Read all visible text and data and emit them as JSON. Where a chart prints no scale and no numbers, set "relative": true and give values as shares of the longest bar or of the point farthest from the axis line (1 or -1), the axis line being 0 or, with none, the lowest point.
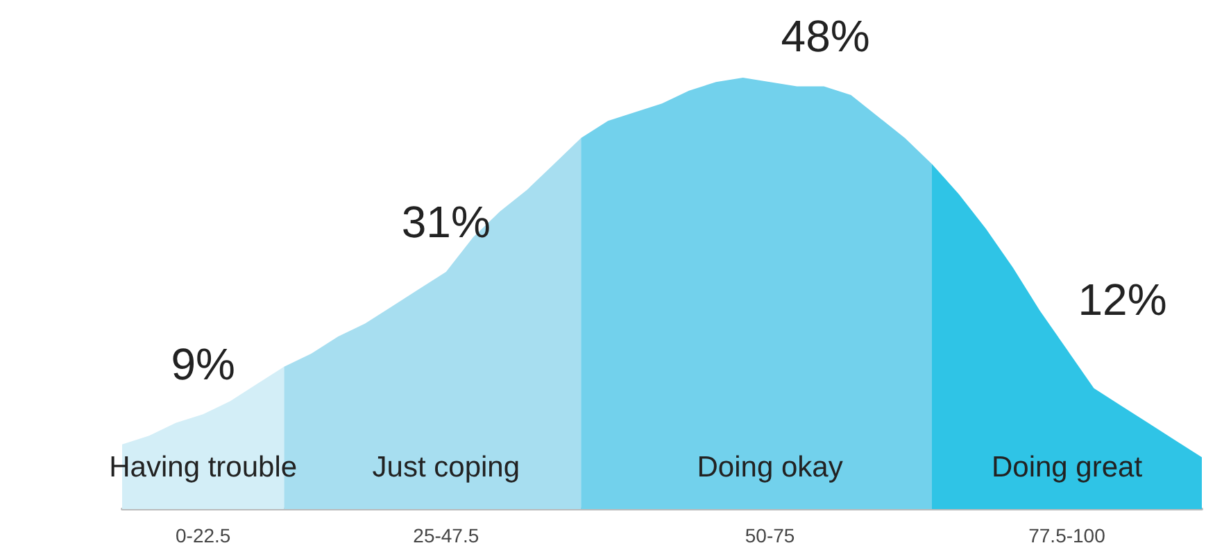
{
  "chart_data": {
    "type": "area",
    "relative": true,
    "legend": false,
    "grid": false,
    "categories": [
      null,
      null,
      null,
      "0-22.5",
      null,
      null,
      null,
      null,
      null,
      null,
      null,
      null,
      "25-47.5",
      null,
      null,
      null,
      null,
      null,
      null,
      null,
      null,
      null,
      null,
      null,
      "50-75",
      null,
      null,
      null,
      null,
      null,
      null,
      null,
      null,
      null,
      null,
      "77.5-100",
      null,
      null,
      null,
      null,
      null
    ],
    "annotations": [
      "9%",
      "31%",
      "48%",
      "12%"
    ],
    "series": [
      {
        "name": "Having trouble",
        "color": "#d3eef7",
        "values": [
          0.15,
          0.17,
          0.2,
          0.22,
          0.25,
          0.29,
          0.33,
          null,
          null,
          null,
          null,
          null,
          null,
          null,
          null,
          null,
          null,
          null,
          null,
          null,
          null,
          null,
          null,
          null,
          null,
          null,
          null,
          null,
          null,
          null,
          null,
          null,
          null,
          null,
          null,
          null,
          null,
          null,
          null,
          null,
          null
        ]
      },
      {
        "name": "Just coping",
        "color": "#a7def0",
        "values": [
          null,
          null,
          null,
          null,
          null,
          null,
          0.33,
          0.36,
          0.4,
          0.43,
          0.47,
          0.51,
          0.55,
          0.63,
          0.69,
          0.74,
          0.8,
          0.86,
          null,
          null,
          null,
          null,
          null,
          null,
          null,
          null,
          null,
          null,
          null,
          null,
          null,
          null,
          null,
          null,
          null,
          null,
          null,
          null,
          null,
          null,
          null
        ]
      },
      {
        "name": "Doing okay",
        "color": "#72d1ec",
        "values": [
          null,
          null,
          null,
          null,
          null,
          null,
          null,
          null,
          null,
          null,
          null,
          null,
          null,
          null,
          null,
          null,
          null,
          0.86,
          0.9,
          0.92,
          0.94,
          0.97,
          0.99,
          1,
          0.99,
          0.98,
          0.98,
          0.96,
          0.91,
          0.86,
          0.8,
          null,
          null,
          null,
          null,
          null,
          null,
          null,
          null,
          null,
          null
        ]
      },
      {
        "name": "Doing great",
        "color": "#2fc4e6",
        "values": [
          null,
          null,
          null,
          null,
          null,
          null,
          null,
          null,
          null,
          null,
          null,
          null,
          null,
          null,
          null,
          null,
          null,
          null,
          null,
          null,
          null,
          null,
          null,
          null,
          null,
          null,
          null,
          null,
          null,
          null,
          0.8,
          0.73,
          0.65,
          0.56,
          0.46,
          0.37,
          0.28,
          0.24,
          0.2,
          0.16,
          0.12
        ]
      }
    ]
  }
}
